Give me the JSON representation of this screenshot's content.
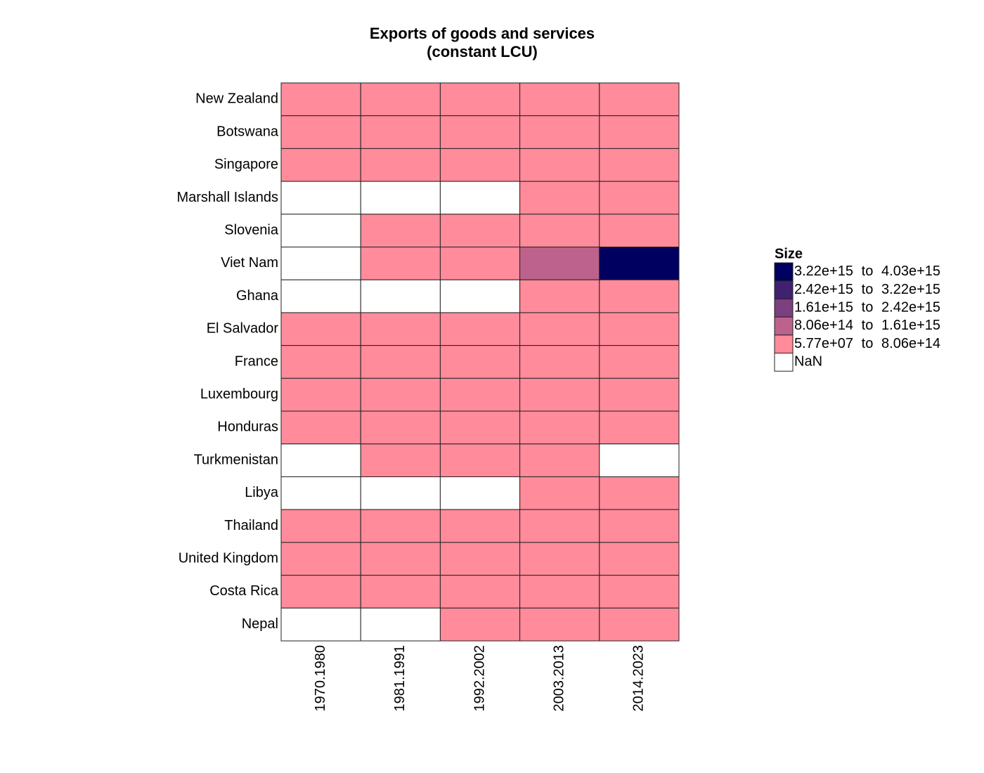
{
  "chart_data": {
    "type": "heatmap",
    "title": [
      "Exports of goods and services",
      "(constant LCU)"
    ],
    "rows": [
      "New Zealand",
      "Botswana",
      "Singapore",
      "Marshall Islands",
      "Slovenia",
      "Viet Nam",
      "Ghana",
      "El Salvador",
      "France",
      "Luxembourg",
      "Honduras",
      "Turkmenistan",
      "Libya",
      "Thailand",
      "United Kingdom",
      "Costa Rica",
      "Nepal"
    ],
    "columns": [
      "1970.1980",
      "1981.1991",
      "1992.2002",
      "2003.2013",
      "2014.2023"
    ],
    "values": [
      [
        15000000000,
        25000000000,
        40000000000,
        55000000000,
        65000000000
      ],
      [
        2000000000,
        8000000000,
        20000000000,
        40000000000,
        50000000000
      ],
      [
        30000000000,
        90000000000,
        250000000000,
        550000000000,
        700000000000
      ],
      [
        null,
        null,
        null,
        100000000,
        150000000
      ],
      [
        null,
        10000000000,
        15000000000,
        25000000000,
        35000000000
      ],
      [
        null,
        50000000000,
        300000000000,
        1200000000000000,
        3500000000000000
      ],
      [
        null,
        null,
        null,
        30000000000,
        60000000000
      ],
      [
        1500000000,
        2000000000,
        3500000000,
        5500000000,
        7000000000
      ],
      [
        200000000000,
        300000000000,
        450000000000,
        600000000000,
        700000000000
      ],
      [
        8000000000,
        15000000000,
        30000000000,
        55000000000,
        70000000000
      ],
      [
        30000000000,
        40000000000,
        60000000000,
        90000000000,
        110000000000
      ],
      [
        null,
        20000000000,
        30000000000,
        60000000000,
        null
      ],
      [
        null,
        null,
        null,
        30000000000,
        20000000000
      ],
      [
        300000000000,
        800000000000,
        2500000000000,
        5000000000000,
        6500000000000
      ],
      [
        150000000000,
        220000000000,
        350000000000,
        550000000000,
        650000000000
      ],
      [
        300000000000,
        600000000000,
        1500000000000,
        3500000000000,
        5500000000000
      ],
      [
        null,
        null,
        50000000000,
        110000000000,
        180000000000
      ]
    ],
    "legend": {
      "title": "Size",
      "items": [
        {
          "low": {
            "value": 3220000000000000,
            "label": "3.22e+15"
          },
          "word": "to",
          "high": {
            "value": 4030000000000000,
            "label": "4.03e+15"
          },
          "color": "#000060"
        },
        {
          "low": {
            "value": 2420000000000000,
            "label": "2.42e+15"
          },
          "word": "to",
          "high": {
            "value": 3220000000000000,
            "label": "3.22e+15"
          },
          "color": "#3f2170"
        },
        {
          "low": {
            "value": 1610000000000000,
            "label": "1.61e+15"
          },
          "word": "to",
          "high": {
            "value": 2420000000000000,
            "label": "2.42e+15"
          },
          "color": "#7c3f7f"
        },
        {
          "low": {
            "value": 806000000000000,
            "label": "8.06e+14"
          },
          "word": "to",
          "high": {
            "value": 1610000000000000,
            "label": "1.61e+15"
          },
          "color": "#bd628c"
        },
        {
          "low": {
            "value": 57700000,
            "label": "5.77e+07"
          },
          "word": "to",
          "high": {
            "value": 806000000000000,
            "label": "8.06e+14"
          },
          "color": "#ff8b9b"
        }
      ],
      "missing": {
        "label": "NaN",
        "color": "#ffffff"
      }
    }
  }
}
